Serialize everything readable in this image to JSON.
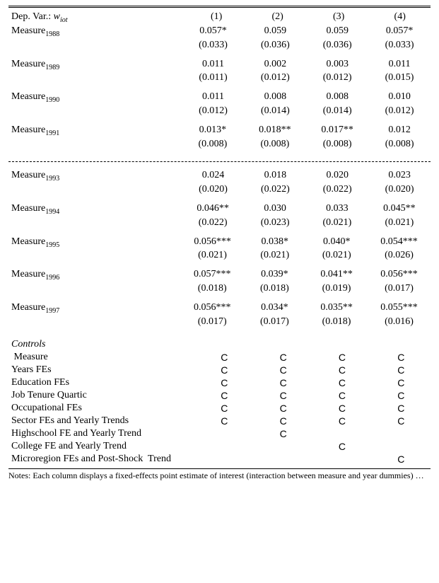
{
  "header": {
    "depvar_label": "Dep. Var.:",
    "depvar_symbol": "w",
    "depvar_subscript": "iot",
    "cols": [
      "(1)",
      "(2)",
      "(3)",
      "(4)"
    ]
  },
  "rows": [
    {
      "label_main": "Measure",
      "label_sub": "1988",
      "coef": [
        "0.057*",
        "0.059",
        "0.059",
        "0.057*"
      ],
      "se": [
        "(0.033)",
        "(0.036)",
        "(0.036)",
        "(0.033)"
      ]
    },
    {
      "label_main": "Measure",
      "label_sub": "1989",
      "coef": [
        "0.011",
        "0.002",
        "0.003",
        "0.011"
      ],
      "se": [
        "(0.011)",
        "(0.012)",
        "(0.012)",
        "(0.015)"
      ]
    },
    {
      "label_main": "Measure",
      "label_sub": "1990",
      "coef": [
        "0.011",
        "0.008",
        "0.008",
        "0.010"
      ],
      "se": [
        "(0.012)",
        "(0.014)",
        "(0.014)",
        "(0.012)"
      ]
    },
    {
      "label_main": "Measure",
      "label_sub": "1991",
      "coef": [
        "0.013*",
        "0.018**",
        "0.017**",
        "0.012"
      ],
      "se": [
        "(0.008)",
        "(0.008)",
        "(0.008)",
        "(0.008)"
      ]
    },
    {
      "divider": true
    },
    {
      "label_main": "Measure",
      "label_sub": "1993",
      "coef": [
        "0.024",
        "0.018",
        "0.020",
        "0.023"
      ],
      "se": [
        "(0.020)",
        "(0.022)",
        "(0.022)",
        "(0.020)"
      ]
    },
    {
      "label_main": "Measure",
      "label_sub": "1994",
      "coef": [
        "0.046**",
        "0.030",
        "0.033",
        "0.045**"
      ],
      "se": [
        "(0.022)",
        "(0.023)",
        "(0.021)",
        "(0.021)"
      ]
    },
    {
      "label_main": "Measure",
      "label_sub": "1995",
      "coef": [
        "0.056***",
        "0.038*",
        "0.040*",
        "0.054***"
      ],
      "se": [
        "(0.021)",
        "(0.021)",
        "(0.021)",
        "(0.026)"
      ]
    },
    {
      "label_main": "Measure",
      "label_sub": "1996",
      "coef": [
        "0.057***",
        "0.039*",
        "0.041**",
        "0.056***"
      ],
      "se": [
        "(0.018)",
        "(0.018)",
        "(0.019)",
        "(0.017)"
      ]
    },
    {
      "label_main": "Measure",
      "label_sub": "1997",
      "coef": [
        "0.056***",
        "0.034*",
        "0.035**",
        "0.055***"
      ],
      "se": [
        "(0.017)",
        "(0.017)",
        "(0.018)",
        "(0.016)"
      ]
    }
  ],
  "controls_heading": "Controls",
  "controls": [
    {
      "label": " Measure",
      "marks": [
        true,
        true,
        true,
        true
      ]
    },
    {
      "label": "Years FEs",
      "marks": [
        true,
        true,
        true,
        true
      ]
    },
    {
      "label": "Education FEs",
      "marks": [
        true,
        true,
        true,
        true
      ]
    },
    {
      "label": "Job Tenure Quartic",
      "marks": [
        true,
        true,
        true,
        true
      ]
    },
    {
      "label": "Occupational FEs",
      "marks": [
        true,
        true,
        true,
        true
      ]
    },
    {
      "label": "Sector FEs and Yearly Trends",
      "marks": [
        true,
        true,
        true,
        true
      ]
    },
    {
      "label": "Highschool FE and Yearly Trend",
      "marks": [
        false,
        true,
        false,
        false
      ]
    },
    {
      "label": "College FE and Yearly Trend",
      "marks": [
        false,
        false,
        true,
        false
      ]
    },
    {
      "label": "Microregion FEs and Post-Shock  Trend",
      "marks": [
        false,
        false,
        false,
        true
      ]
    }
  ],
  "check_glyph": "C",
  "notes_prefix": "Notes: ",
  "notes_text": "Each column displays a fixed-effects point estimate of interest (interaction between measure and year dummies) …"
}
